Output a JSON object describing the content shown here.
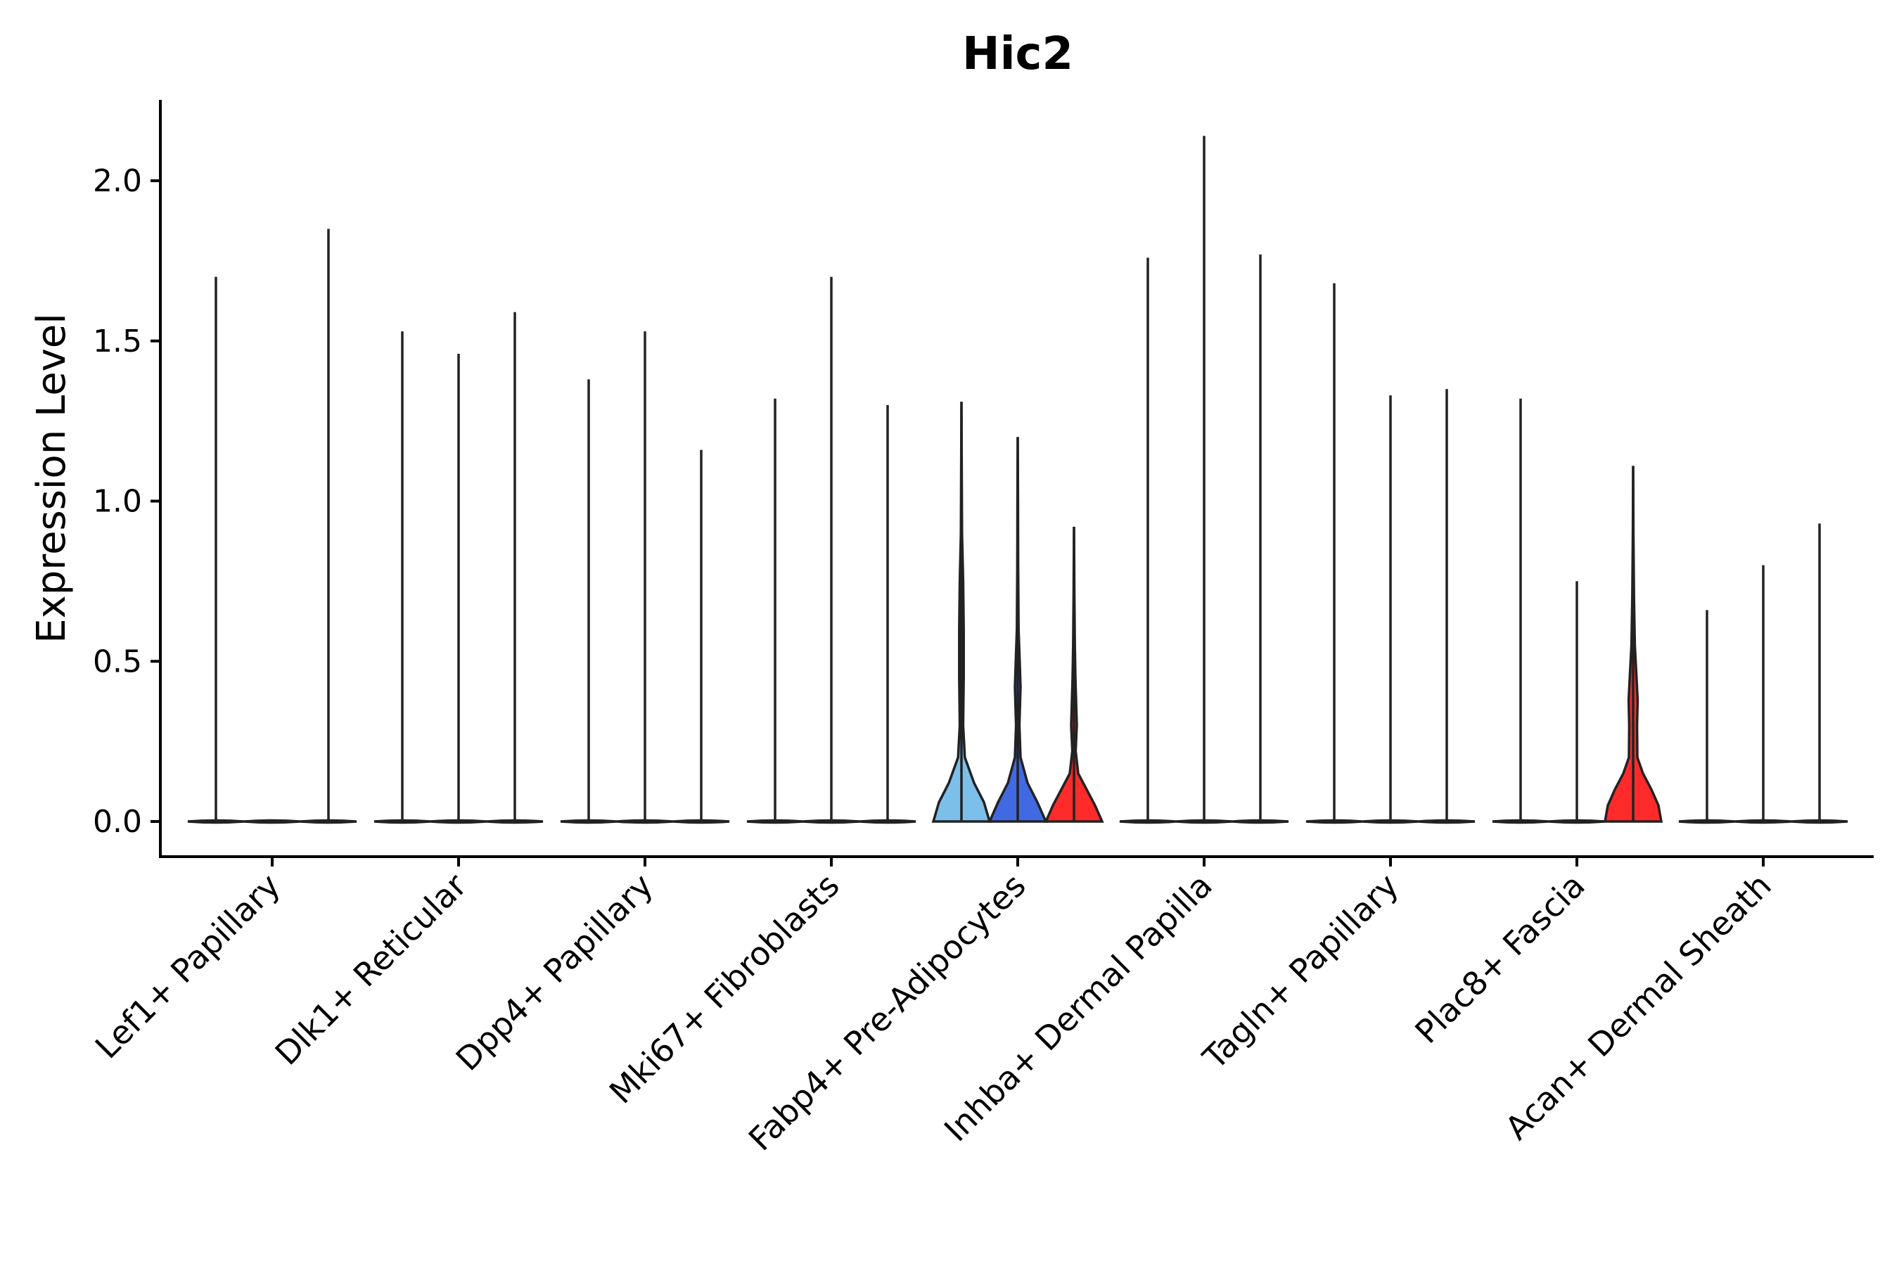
{
  "chart_data": {
    "type": "violin",
    "title": "Hic2",
    "xlabel": "",
    "ylabel": "Expression Level",
    "ylim": [
      -0.1,
      2.25
    ],
    "yticks": [
      0.0,
      0.5,
      1.0,
      1.5,
      2.0
    ],
    "ytick_labels": [
      "0.0",
      "0.5",
      "1.0",
      "1.5",
      "2.0"
    ],
    "grid": false,
    "legend": "none",
    "groups_per_category": 3,
    "group_colors": [
      "#7BBFEA",
      "#4169E1",
      "#FF2A2A"
    ],
    "categories": [
      "Lef1+ Papillary",
      "Dlk1+ Reticular",
      "Dpp4+ Papillary",
      "Mki67+ Fibroblasts",
      "Fabp4+ Pre-Adipocytes",
      "Inhba+ Dermal Papilla",
      "Tagln+ Papillary",
      "Plac8+ Fascia",
      "Acan+ Dermal Sheath"
    ],
    "max_values": [
      [
        1.7,
        0.0,
        1.85
      ],
      [
        1.53,
        1.46,
        1.59
      ],
      [
        1.38,
        1.53,
        1.16
      ],
      [
        1.32,
        1.7,
        1.3
      ],
      [
        1.31,
        1.2,
        0.92
      ],
      [
        1.76,
        2.14,
        1.77
      ],
      [
        1.68,
        1.33,
        1.35
      ],
      [
        1.32,
        0.75,
        1.11
      ],
      [
        0.66,
        0.8,
        0.93
      ]
    ],
    "filled_violins": [
      {
        "category": "Fabp4+ Pre-Adipocytes",
        "group": 0,
        "max": 1.31,
        "color": "#7BBFEA",
        "profile": [
          [
            0.0,
            1.0
          ],
          [
            0.06,
            0.8
          ],
          [
            0.12,
            0.45
          ],
          [
            0.2,
            0.12
          ],
          [
            0.3,
            0.06
          ],
          [
            0.45,
            0.08
          ],
          [
            0.6,
            0.08
          ],
          [
            0.75,
            0.06
          ],
          [
            0.9,
            0.02
          ],
          [
            1.1,
            0.01
          ]
        ]
      },
      {
        "category": "Fabp4+ Pre-Adipocytes",
        "group": 1,
        "max": 1.2,
        "color": "#4169E1",
        "profile": [
          [
            0.0,
            1.0
          ],
          [
            0.06,
            0.7
          ],
          [
            0.12,
            0.35
          ],
          [
            0.2,
            0.1
          ],
          [
            0.3,
            0.06
          ],
          [
            0.42,
            0.1
          ],
          [
            0.5,
            0.07
          ],
          [
            0.6,
            0.03
          ],
          [
            0.8,
            0.015
          ],
          [
            1.0,
            0.01
          ]
        ]
      },
      {
        "category": "Fabp4+ Pre-Adipocytes",
        "group": 2,
        "max": 0.92,
        "color": "#FF2A2A",
        "profile": [
          [
            0.0,
            1.0
          ],
          [
            0.05,
            0.75
          ],
          [
            0.1,
            0.45
          ],
          [
            0.15,
            0.15
          ],
          [
            0.22,
            0.06
          ],
          [
            0.3,
            0.1
          ],
          [
            0.36,
            0.08
          ],
          [
            0.45,
            0.05
          ],
          [
            0.55,
            0.03
          ],
          [
            0.7,
            0.015
          ]
        ]
      },
      {
        "category": "Plac8+ Fascia",
        "group": 2,
        "max": 1.11,
        "color": "#FF2A2A",
        "profile": [
          [
            0.0,
            1.0
          ],
          [
            0.05,
            0.9
          ],
          [
            0.1,
            0.65
          ],
          [
            0.15,
            0.35
          ],
          [
            0.2,
            0.15
          ],
          [
            0.3,
            0.14
          ],
          [
            0.38,
            0.16
          ],
          [
            0.45,
            0.12
          ],
          [
            0.55,
            0.06
          ],
          [
            0.7,
            0.03
          ],
          [
            0.9,
            0.01
          ]
        ]
      }
    ]
  }
}
